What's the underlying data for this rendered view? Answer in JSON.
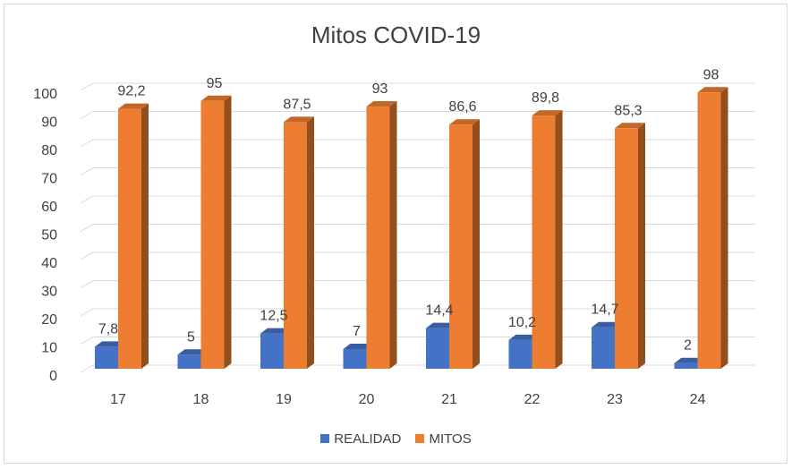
{
  "chart_data": {
    "type": "bar",
    "title": "Mitos COVID-19",
    "categories": [
      "17",
      "18",
      "19",
      "20",
      "21",
      "22",
      "23",
      "24"
    ],
    "series": [
      {
        "name": "REALIDAD",
        "color": "#4472c4",
        "values": [
          7.8,
          5,
          12.5,
          7,
          14.4,
          10.2,
          14.7,
          2
        ],
        "labels": [
          "7,8",
          "5",
          "12,5",
          "7",
          "14,4",
          "10,2",
          "14,7",
          "2"
        ]
      },
      {
        "name": "MITOS",
        "color": "#ed7d31",
        "values": [
          92.2,
          95,
          87.5,
          93,
          86.6,
          89.8,
          85.3,
          98
        ],
        "labels": [
          "92,2",
          "95",
          "87,5",
          "93",
          "86,6",
          "89,8",
          "85,3",
          "98"
        ]
      }
    ],
    "yticks": [
      "0",
      "10",
      "20",
      "30",
      "40",
      "50",
      "60",
      "70",
      "80",
      "90",
      "100"
    ],
    "ylim": [
      0,
      100
    ],
    "grid": true,
    "legend_position": "bottom",
    "style": "3d-column"
  }
}
